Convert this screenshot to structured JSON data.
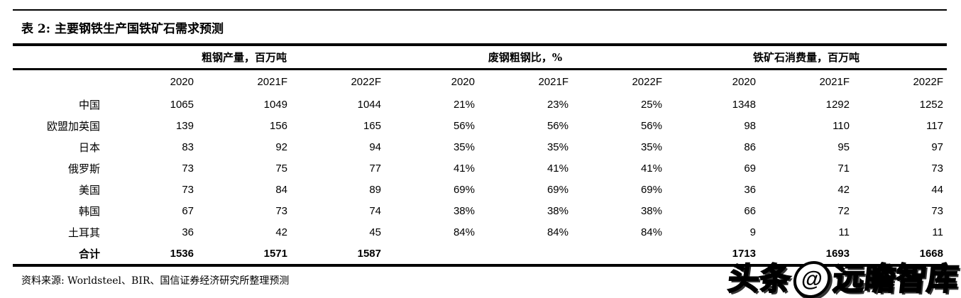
{
  "title": "表 2:  主要钢铁生产国铁矿石需求预测",
  "table": {
    "groups": [
      {
        "label": "粗钢产量，百万吨"
      },
      {
        "label": "废钢粗钢比，%"
      },
      {
        "label": "铁矿石消费量，百万吨"
      }
    ],
    "year_headers": [
      "2020",
      "2021F",
      "2022F",
      "2020",
      "2021F",
      "2022F",
      "2020",
      "2021F",
      "2022F"
    ],
    "rows": [
      {
        "name": "中国",
        "bold": false,
        "values": [
          "1065",
          "1049",
          "1044",
          "21%",
          "23%",
          "25%",
          "1348",
          "1292",
          "1252"
        ]
      },
      {
        "name": "欧盟加英国",
        "bold": false,
        "values": [
          "139",
          "156",
          "165",
          "56%",
          "56%",
          "56%",
          "98",
          "110",
          "117"
        ]
      },
      {
        "name": "日本",
        "bold": false,
        "values": [
          "83",
          "92",
          "94",
          "35%",
          "35%",
          "35%",
          "86",
          "95",
          "97"
        ]
      },
      {
        "name": "俄罗斯",
        "bold": false,
        "values": [
          "73",
          "75",
          "77",
          "41%",
          "41%",
          "41%",
          "69",
          "71",
          "73"
        ]
      },
      {
        "name": "美国",
        "bold": false,
        "values": [
          "73",
          "84",
          "89",
          "69%",
          "69%",
          "69%",
          "36",
          "42",
          "44"
        ]
      },
      {
        "name": "韩国",
        "bold": false,
        "values": [
          "67",
          "73",
          "74",
          "38%",
          "38%",
          "38%",
          "66",
          "72",
          "73"
        ]
      },
      {
        "name": "土耳其",
        "bold": false,
        "values": [
          "36",
          "42",
          "45",
          "84%",
          "84%",
          "84%",
          "9",
          "11",
          "11"
        ]
      },
      {
        "name": "合计",
        "bold": true,
        "values": [
          "1536",
          "1571",
          "1587",
          "",
          "",
          "",
          "1713",
          "1693",
          "1668"
        ]
      }
    ]
  },
  "footer": {
    "source": "资料来源: Worldsteel、BIR、国信证券经济研究所整理预测"
  },
  "watermark": {
    "prefix": "头条",
    "logo_glyph": "@",
    "suffix": "远瞻智库"
  },
  "colors": {
    "text": "#000000",
    "background": "#ffffff",
    "rule": "#000000"
  }
}
